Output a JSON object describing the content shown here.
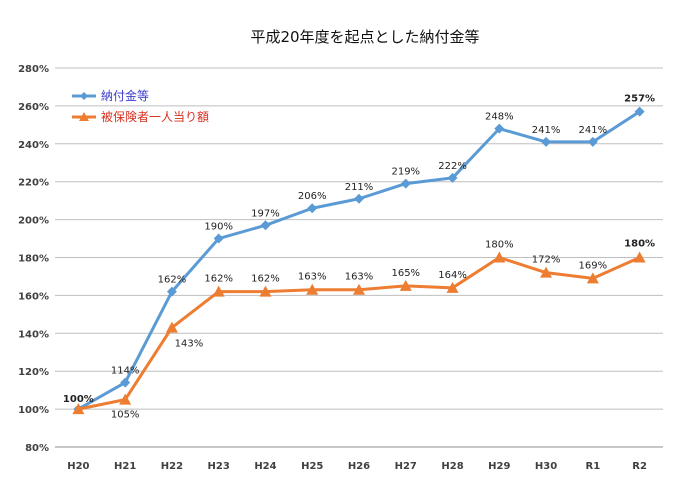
{
  "chart_data": {
    "type": "line",
    "title": "平成20年度を起点とした納付金等",
    "categories": [
      "H20",
      "H21",
      "H22",
      "H23",
      "H24",
      "H25",
      "H26",
      "H27",
      "H28",
      "H29",
      "H30",
      "R1",
      "R2"
    ],
    "ylim": [
      80,
      280
    ],
    "yticks": [
      80,
      100,
      120,
      140,
      160,
      180,
      200,
      220,
      240,
      260,
      280
    ],
    "ytick_labels": [
      "80%",
      "100%",
      "120%",
      "140%",
      "160%",
      "180%",
      "200%",
      "220%",
      "240%",
      "260%",
      "280%"
    ],
    "grid": true,
    "legend_position": "top-left",
    "series": [
      {
        "name": "納付金等",
        "color": "#5b9bd5",
        "marker": "diamond",
        "values": [
          100,
          114,
          162,
          190,
          197,
          206,
          211,
          219,
          222,
          248,
          241,
          241,
          257
        ],
        "labels": [
          "100%",
          "114%",
          "162%",
          "190%",
          "197%",
          "206%",
          "211%",
          "219%",
          "222%",
          "248%",
          "241%",
          "241%",
          "257%"
        ]
      },
      {
        "name": "被保険者一人当り額",
        "color": "#ed7d31",
        "marker": "triangle",
        "values": [
          100,
          105,
          143,
          162,
          162,
          163,
          163,
          165,
          164,
          180,
          172,
          169,
          180
        ],
        "labels": [
          "",
          "105%",
          "143%",
          "162%",
          "162%",
          "163%",
          "163%",
          "165%",
          "164%",
          "180%",
          "172%",
          "169%",
          "180%"
        ]
      }
    ],
    "highlight_color": "#e02020"
  }
}
